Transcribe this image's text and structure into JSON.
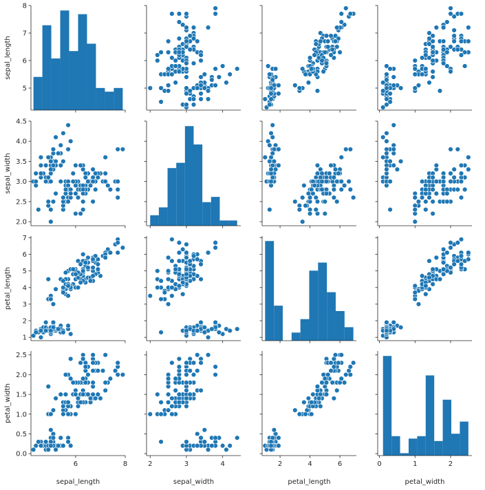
{
  "chart_data": {
    "type": "pairplot",
    "variables": [
      "sepal_length",
      "sepal_width",
      "petal_length",
      "petal_width"
    ],
    "diagonal": "histogram",
    "offdiagonal": "scatter",
    "color": "#1f77b4",
    "marker_edge_color": "#ffffff",
    "axes": {
      "sepal_length": {
        "range": [
          4.2,
          8.0
        ],
        "ticks": [
          "5",
          "6",
          "7",
          "8"
        ],
        "x_ticks": [
          "6",
          "8"
        ]
      },
      "sepal_width": {
        "range": [
          1.9,
          4.5
        ],
        "ticks": [
          "2.0",
          "2.5",
          "3.0",
          "3.5",
          "4.0",
          "4.5"
        ],
        "x_ticks": [
          "2",
          "3",
          "4"
        ]
      },
      "petal_length": {
        "range": [
          0.8,
          7.1
        ],
        "ticks": [
          "1",
          "2",
          "3",
          "4",
          "5",
          "6",
          "7"
        ],
        "x_ticks": [
          "2",
          "4",
          "6"
        ]
      },
      "petal_width": {
        "range": [
          -0.05,
          2.6
        ],
        "ticks": [
          "0.0",
          "0.5",
          "1.0",
          "1.5",
          "2.0",
          "2.5"
        ],
        "x_ticks": [
          "0",
          "1",
          "2"
        ]
      }
    },
    "histograms": {
      "sepal_length": {
        "edges": [
          4.3,
          4.66,
          5.02,
          5.38,
          5.74,
          6.1,
          6.46,
          6.82,
          7.18,
          7.54,
          7.9
        ],
        "counts": [
          9,
          23,
          14,
          27,
          16,
          26,
          18,
          6,
          5,
          6
        ]
      },
      "sepal_width": {
        "edges": [
          2.0,
          2.24,
          2.48,
          2.72,
          2.96,
          3.2,
          3.44,
          3.68,
          3.92,
          4.16,
          4.4
        ],
        "counts": [
          4,
          7,
          22,
          24,
          38,
          31,
          9,
          11,
          2,
          2
        ]
      },
      "petal_length": {
        "edges": [
          1.0,
          1.59,
          2.18,
          2.77,
          3.36,
          3.95,
          4.54,
          5.13,
          5.72,
          6.31,
          6.9
        ],
        "counts": [
          37,
          13,
          0,
          3,
          8,
          26,
          29,
          18,
          11,
          5
        ]
      },
      "petal_width": {
        "edges": [
          0.1,
          0.34,
          0.58,
          0.82,
          1.06,
          1.3,
          1.54,
          1.78,
          2.02,
          2.26,
          2.5
        ],
        "counts": [
          41,
          8,
          1,
          7,
          8,
          33,
          6,
          23,
          9,
          14
        ]
      }
    },
    "points": [
      [
        5.1,
        3.5,
        1.4,
        0.2
      ],
      [
        4.9,
        3.0,
        1.4,
        0.2
      ],
      [
        4.7,
        3.2,
        1.3,
        0.2
      ],
      [
        4.6,
        3.1,
        1.5,
        0.2
      ],
      [
        5.0,
        3.6,
        1.4,
        0.2
      ],
      [
        5.4,
        3.9,
        1.7,
        0.4
      ],
      [
        4.6,
        3.4,
        1.4,
        0.3
      ],
      [
        5.0,
        3.4,
        1.5,
        0.2
      ],
      [
        4.4,
        2.9,
        1.4,
        0.2
      ],
      [
        4.9,
        3.1,
        1.5,
        0.1
      ],
      [
        5.4,
        3.7,
        1.5,
        0.2
      ],
      [
        4.8,
        3.4,
        1.6,
        0.2
      ],
      [
        4.8,
        3.0,
        1.4,
        0.1
      ],
      [
        4.3,
        3.0,
        1.1,
        0.1
      ],
      [
        5.8,
        4.0,
        1.2,
        0.2
      ],
      [
        5.7,
        4.4,
        1.5,
        0.4
      ],
      [
        5.4,
        3.9,
        1.3,
        0.4
      ],
      [
        5.1,
        3.5,
        1.4,
        0.3
      ],
      [
        5.7,
        3.8,
        1.7,
        0.3
      ],
      [
        5.1,
        3.8,
        1.5,
        0.3
      ],
      [
        5.4,
        3.4,
        1.7,
        0.2
      ],
      [
        5.1,
        3.7,
        1.5,
        0.4
      ],
      [
        4.6,
        3.6,
        1.0,
        0.2
      ],
      [
        5.1,
        3.3,
        1.7,
        0.5
      ],
      [
        4.8,
        3.4,
        1.9,
        0.2
      ],
      [
        5.0,
        3.0,
        1.6,
        0.2
      ],
      [
        5.0,
        3.4,
        1.6,
        0.4
      ],
      [
        5.2,
        3.5,
        1.5,
        0.2
      ],
      [
        5.2,
        3.4,
        1.4,
        0.2
      ],
      [
        4.7,
        3.2,
        1.6,
        0.2
      ],
      [
        4.8,
        3.1,
        1.6,
        0.2
      ],
      [
        5.4,
        3.4,
        1.5,
        0.4
      ],
      [
        5.2,
        4.1,
        1.5,
        0.1
      ],
      [
        5.5,
        4.2,
        1.4,
        0.2
      ],
      [
        4.9,
        3.1,
        1.5,
        0.2
      ],
      [
        5.0,
        3.2,
        1.2,
        0.2
      ],
      [
        5.5,
        3.5,
        1.3,
        0.2
      ],
      [
        4.9,
        3.6,
        1.4,
        0.1
      ],
      [
        4.4,
        3.0,
        1.3,
        0.2
      ],
      [
        5.1,
        3.4,
        1.5,
        0.2
      ],
      [
        5.0,
        3.5,
        1.3,
        0.3
      ],
      [
        4.5,
        2.3,
        1.3,
        0.3
      ],
      [
        4.4,
        3.2,
        1.3,
        0.2
      ],
      [
        5.0,
        3.5,
        1.6,
        0.6
      ],
      [
        5.1,
        3.8,
        1.9,
        0.4
      ],
      [
        4.8,
        3.0,
        1.4,
        0.3
      ],
      [
        5.1,
        3.8,
        1.6,
        0.2
      ],
      [
        4.6,
        3.2,
        1.4,
        0.2
      ],
      [
        5.3,
        3.7,
        1.5,
        0.2
      ],
      [
        5.0,
        3.3,
        1.4,
        0.2
      ],
      [
        7.0,
        3.2,
        4.7,
        1.4
      ],
      [
        6.4,
        3.2,
        4.5,
        1.5
      ],
      [
        6.9,
        3.1,
        4.9,
        1.5
      ],
      [
        5.5,
        2.3,
        4.0,
        1.3
      ],
      [
        6.5,
        2.8,
        4.6,
        1.5
      ],
      [
        5.7,
        2.8,
        4.5,
        1.3
      ],
      [
        6.3,
        3.3,
        4.7,
        1.6
      ],
      [
        4.9,
        2.4,
        3.3,
        1.0
      ],
      [
        6.6,
        2.9,
        4.6,
        1.3
      ],
      [
        5.2,
        2.7,
        3.9,
        1.4
      ],
      [
        5.0,
        2.0,
        3.5,
        1.0
      ],
      [
        5.9,
        3.0,
        4.2,
        1.5
      ],
      [
        6.0,
        2.2,
        4.0,
        1.0
      ],
      [
        6.1,
        2.9,
        4.7,
        1.4
      ],
      [
        5.6,
        2.9,
        3.6,
        1.3
      ],
      [
        6.7,
        3.1,
        4.4,
        1.4
      ],
      [
        5.6,
        3.0,
        4.5,
        1.5
      ],
      [
        5.8,
        2.7,
        4.1,
        1.0
      ],
      [
        6.2,
        2.2,
        4.5,
        1.5
      ],
      [
        5.6,
        2.5,
        3.9,
        1.1
      ],
      [
        5.9,
        3.2,
        4.8,
        1.8
      ],
      [
        6.1,
        2.8,
        4.0,
        1.3
      ],
      [
        6.3,
        2.5,
        4.9,
        1.5
      ],
      [
        6.1,
        2.8,
        4.7,
        1.2
      ],
      [
        6.4,
        2.9,
        4.3,
        1.3
      ],
      [
        6.6,
        3.0,
        4.4,
        1.4
      ],
      [
        6.8,
        2.8,
        4.8,
        1.4
      ],
      [
        6.7,
        3.0,
        5.0,
        1.7
      ],
      [
        6.0,
        2.9,
        4.5,
        1.5
      ],
      [
        5.7,
        2.6,
        3.5,
        1.0
      ],
      [
        5.5,
        2.4,
        3.8,
        1.1
      ],
      [
        5.5,
        2.4,
        3.7,
        1.0
      ],
      [
        5.8,
        2.7,
        3.9,
        1.2
      ],
      [
        6.0,
        2.7,
        5.1,
        1.6
      ],
      [
        5.4,
        3.0,
        4.5,
        1.5
      ],
      [
        6.0,
        3.4,
        4.5,
        1.6
      ],
      [
        6.7,
        3.1,
        4.7,
        1.5
      ],
      [
        6.3,
        2.3,
        4.4,
        1.3
      ],
      [
        5.6,
        3.0,
        4.1,
        1.3
      ],
      [
        5.5,
        2.5,
        4.0,
        1.3
      ],
      [
        5.5,
        2.6,
        4.4,
        1.2
      ],
      [
        6.1,
        3.0,
        4.6,
        1.4
      ],
      [
        5.8,
        2.6,
        4.0,
        1.2
      ],
      [
        5.0,
        2.3,
        3.3,
        1.0
      ],
      [
        5.6,
        2.7,
        4.2,
        1.3
      ],
      [
        5.7,
        3.0,
        4.2,
        1.2
      ],
      [
        5.7,
        2.9,
        4.2,
        1.3
      ],
      [
        6.2,
        2.9,
        4.3,
        1.3
      ],
      [
        5.1,
        2.5,
        3.0,
        1.1
      ],
      [
        5.7,
        2.8,
        4.1,
        1.3
      ],
      [
        6.3,
        3.3,
        6.0,
        2.5
      ],
      [
        5.8,
        2.7,
        5.1,
        1.9
      ],
      [
        7.1,
        3.0,
        5.9,
        2.1
      ],
      [
        6.3,
        2.9,
        5.6,
        1.8
      ],
      [
        6.5,
        3.0,
        5.8,
        2.2
      ],
      [
        7.6,
        3.0,
        6.6,
        2.1
      ],
      [
        4.9,
        2.5,
        4.5,
        1.7
      ],
      [
        7.3,
        2.9,
        6.3,
        1.8
      ],
      [
        6.7,
        2.5,
        5.8,
        1.8
      ],
      [
        7.2,
        3.6,
        6.1,
        2.5
      ],
      [
        6.5,
        3.2,
        5.1,
        2.0
      ],
      [
        6.4,
        2.7,
        5.3,
        1.9
      ],
      [
        6.8,
        3.0,
        5.5,
        2.1
      ],
      [
        5.7,
        2.5,
        5.0,
        2.0
      ],
      [
        5.8,
        2.8,
        5.1,
        2.4
      ],
      [
        6.4,
        3.2,
        5.3,
        2.3
      ],
      [
        6.5,
        3.0,
        5.5,
        1.8
      ],
      [
        7.7,
        3.8,
        6.7,
        2.2
      ],
      [
        7.7,
        2.6,
        6.9,
        2.3
      ],
      [
        6.0,
        2.2,
        5.0,
        1.5
      ],
      [
        6.9,
        3.2,
        5.7,
        2.3
      ],
      [
        5.6,
        2.8,
        4.9,
        2.0
      ],
      [
        7.7,
        2.8,
        6.7,
        2.0
      ],
      [
        6.3,
        2.7,
        4.9,
        1.8
      ],
      [
        6.7,
        3.3,
        5.7,
        2.1
      ],
      [
        7.2,
        3.2,
        6.0,
        1.8
      ],
      [
        6.2,
        2.8,
        4.8,
        1.8
      ],
      [
        6.1,
        3.0,
        4.9,
        1.8
      ],
      [
        6.4,
        2.8,
        5.6,
        2.1
      ],
      [
        7.2,
        3.0,
        5.8,
        1.6
      ],
      [
        7.4,
        2.8,
        6.1,
        1.9
      ],
      [
        7.9,
        3.8,
        6.4,
        2.0
      ],
      [
        6.4,
        2.8,
        5.6,
        2.2
      ],
      [
        6.3,
        2.8,
        5.1,
        1.5
      ],
      [
        6.1,
        2.6,
        5.6,
        1.4
      ],
      [
        7.7,
        3.0,
        6.1,
        2.3
      ],
      [
        6.3,
        3.4,
        5.6,
        2.4
      ],
      [
        6.4,
        3.1,
        5.5,
        1.8
      ],
      [
        6.0,
        3.0,
        4.8,
        1.8
      ],
      [
        6.9,
        3.1,
        5.4,
        2.1
      ],
      [
        6.7,
        3.1,
        5.6,
        2.4
      ],
      [
        6.9,
        3.1,
        5.1,
        2.3
      ],
      [
        5.8,
        2.7,
        5.1,
        1.9
      ],
      [
        6.8,
        3.2,
        5.9,
        2.3
      ],
      [
        6.7,
        3.3,
        5.7,
        2.5
      ],
      [
        6.7,
        3.0,
        5.2,
        2.3
      ],
      [
        6.3,
        2.5,
        5.0,
        1.9
      ],
      [
        6.5,
        3.0,
        5.2,
        2.0
      ],
      [
        6.2,
        3.4,
        5.4,
        2.3
      ],
      [
        5.9,
        3.0,
        5.1,
        1.8
      ]
    ]
  }
}
